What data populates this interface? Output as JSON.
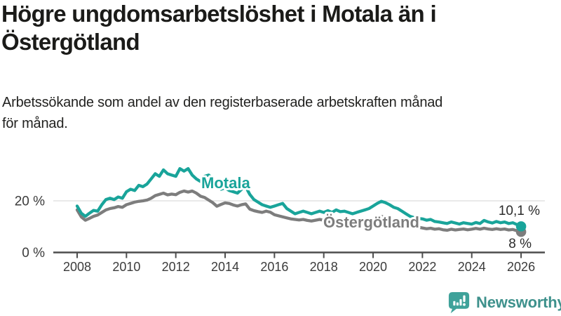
{
  "title": "Högre ungdomsarbetslöshet i Motala än i\nÖstergötland",
  "subtitle": "Arbetssökande som andel av den registerbaserade arbetskraften månad\nför månad.",
  "brand": {
    "name": "Newsworthy",
    "icon": "bar-chart-speech-bubble-icon",
    "color": "#3e918c",
    "icon_color": "#3fa29a"
  },
  "chart_data": {
    "type": "line",
    "unit": "%",
    "x_start": 2008,
    "x_step_years": 0.16667,
    "x_ticks": [
      2008,
      2010,
      2012,
      2014,
      2016,
      2018,
      2020,
      2022,
      2024,
      2026
    ],
    "y_ticks": [
      {
        "value": 20,
        "label": "20 %",
        "grid": true
      },
      {
        "value": 0,
        "label": "0 %",
        "grid": false
      }
    ],
    "ylim": [
      0,
      36
    ],
    "grid": "y-only",
    "legend_position": "inline-labels",
    "series": [
      {
        "name": "Östergötland",
        "color": "#7d7d7d",
        "values": [
          16.5,
          13.8,
          12.5,
          13.2,
          14.0,
          14.5,
          15.5,
          16.5,
          17.0,
          17.3,
          17.8,
          17.5,
          18.5,
          19.0,
          19.5,
          19.8,
          20.0,
          20.3,
          21.0,
          22.0,
          22.5,
          23.0,
          22.3,
          22.6,
          22.4,
          23.3,
          23.8,
          23.4,
          23.8,
          23.0,
          21.8,
          21.3,
          20.3,
          19.3,
          17.9,
          18.6,
          19.2,
          19.0,
          18.4,
          18.0,
          18.5,
          18.8,
          16.8,
          16.2,
          15.8,
          15.5,
          16.0,
          15.6,
          14.6,
          14.2,
          13.8,
          13.4,
          13.0,
          12.8,
          12.6,
          12.8,
          12.4,
          12.2,
          12.5,
          12.8,
          12.5,
          12.1,
          11.8,
          11.6,
          11.9,
          12.1,
          11.9,
          11.6,
          11.8,
          12.0,
          12.2,
          12.4,
          12.9,
          13.5,
          14.0,
          13.7,
          13.2,
          12.6,
          12.0,
          11.4,
          10.8,
          10.4,
          10.0,
          9.8,
          9.5,
          9.2,
          9.4,
          9.0,
          9.2,
          8.8,
          8.6,
          9.0,
          8.7,
          8.9,
          9.1,
          8.8,
          9.0,
          9.3,
          9.0,
          9.4,
          9.1,
          8.9,
          9.2,
          8.9,
          9.1,
          8.7,
          8.9,
          8.4,
          8.0
        ]
      },
      {
        "name": "Motala",
        "color": "#19a49a",
        "values": [
          18.0,
          15.2,
          14.0,
          15.2,
          16.3,
          16.0,
          18.5,
          20.5,
          21.0,
          20.5,
          21.5,
          21.0,
          23.5,
          24.5,
          24.0,
          26.0,
          25.5,
          26.5,
          28.5,
          30.5,
          29.5,
          32.0,
          30.5,
          30.0,
          29.5,
          32.5,
          31.5,
          32.5,
          30.0,
          28.5,
          27.5,
          29.5,
          30.0,
          28.5,
          26.5,
          24.5,
          25.0,
          24.0,
          23.5,
          23.0,
          24.5,
          25.5,
          22.5,
          20.5,
          19.5,
          18.5,
          18.0,
          17.5,
          18.0,
          18.5,
          19.0,
          17.0,
          16.0,
          15.0,
          15.5,
          16.0,
          15.5,
          15.0,
          15.5,
          16.0,
          15.5,
          16.2,
          15.5,
          16.5,
          15.8,
          16.0,
          15.5,
          15.0,
          15.5,
          16.0,
          16.5,
          17.0,
          18.0,
          19.0,
          19.8,
          19.3,
          18.5,
          17.5,
          17.0,
          16.0,
          15.0,
          14.0,
          13.5,
          13.2,
          13.0,
          12.5,
          12.8,
          12.0,
          11.8,
          11.5,
          11.2,
          11.8,
          11.4,
          11.0,
          11.5,
          11.2,
          11.0,
          11.6,
          11.2,
          12.4,
          11.8,
          11.4,
          12.0,
          11.5,
          11.8,
          11.2,
          11.5,
          10.8,
          10.1
        ]
      }
    ],
    "end_labels": {
      "motala": "10,1 %",
      "ostergotland": "8 %"
    }
  }
}
